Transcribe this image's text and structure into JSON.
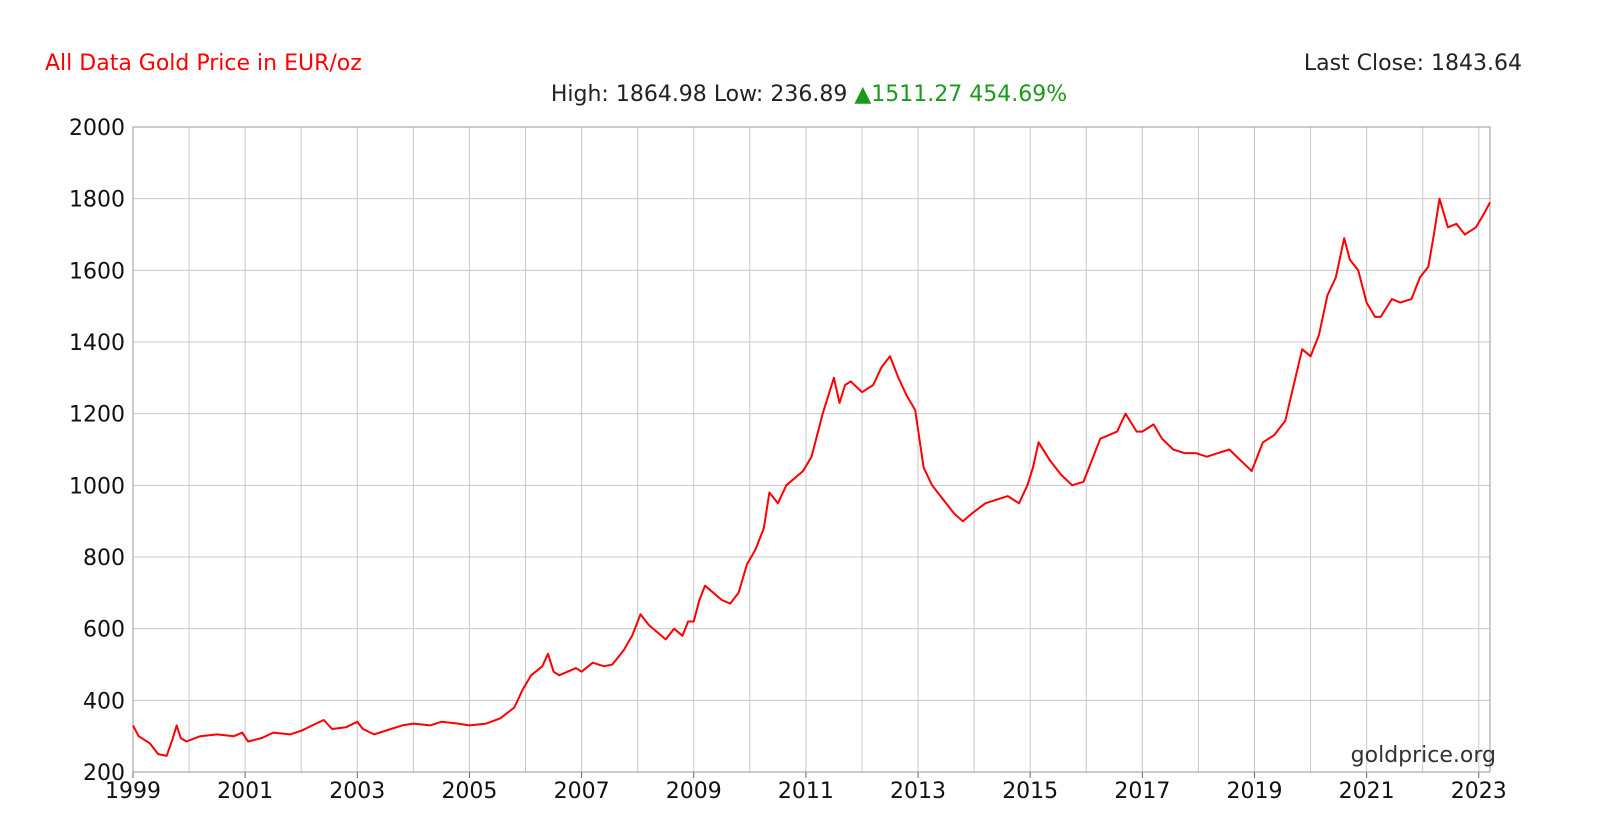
{
  "header": {
    "title": "All Data Gold Price in EUR/oz",
    "last_close_label": "Last Close:",
    "last_close_value": "1843.64",
    "high_label": "High:",
    "high_value": "1864.98",
    "low_label": "Low:",
    "low_value": "236.89",
    "change_value": "1511.27",
    "change_pct": "454.69%",
    "change_icon": "triangle-up-icon"
  },
  "watermark": "goldprice.org",
  "colors": {
    "line": "#ff0000",
    "title": "#ff0000",
    "up": "#1a9a1a",
    "grid": "#c8c8c8"
  },
  "chart_data": {
    "type": "line",
    "title": "All Data Gold Price in EUR/oz",
    "xlabel": "",
    "ylabel": "",
    "xlim": [
      1999.0,
      2023.2
    ],
    "ylim": [
      200,
      2000
    ],
    "grid": true,
    "x_ticks": [
      "1999",
      "2001",
      "2003",
      "2005",
      "2007",
      "2009",
      "2011",
      "2013",
      "2015",
      "2017",
      "2019",
      "2021",
      "2023"
    ],
    "x_tick_values": [
      1999,
      2001,
      2003,
      2005,
      2007,
      2009,
      2011,
      2013,
      2015,
      2017,
      2019,
      2021,
      2023
    ],
    "y_ticks": [
      200,
      400,
      600,
      800,
      1000,
      1200,
      1400,
      1600,
      1800,
      2000
    ],
    "series": [
      {
        "color": "#ff0000",
        "x": [
          1999.0,
          1999.1,
          1999.3,
          1999.45,
          1999.6,
          1999.7,
          1999.78,
          1999.85,
          1999.95,
          2000.2,
          2000.5,
          2000.8,
          2000.95,
          2001.05,
          2001.3,
          2001.5,
          2001.8,
          2002.0,
          2002.2,
          2002.4,
          2002.55,
          2002.8,
          2003.0,
          2003.1,
          2003.3,
          2003.6,
          2003.8,
          2004.0,
          2004.3,
          2004.5,
          2004.8,
          2005.0,
          2005.3,
          2005.55,
          2005.8,
          2005.95,
          2006.1,
          2006.3,
          2006.4,
          2006.5,
          2006.6,
          2006.75,
          2006.9,
          2007.0,
          2007.2,
          2007.4,
          2007.55,
          2007.75,
          2007.9,
          2008.05,
          2008.2,
          2008.35,
          2008.5,
          2008.65,
          2008.8,
          2008.9,
          2009.0,
          2009.1,
          2009.2,
          2009.35,
          2009.5,
          2009.65,
          2009.8,
          2009.95,
          2010.1,
          2010.25,
          2010.35,
          2010.5,
          2010.65,
          2010.8,
          2010.95,
          2011.1,
          2011.3,
          2011.5,
          2011.6,
          2011.7,
          2011.8,
          2012.0,
          2012.2,
          2012.35,
          2012.5,
          2012.65,
          2012.8,
          2012.95,
          2013.1,
          2013.25,
          2013.35,
          2013.5,
          2013.65,
          2013.8,
          2013.95,
          2014.2,
          2014.4,
          2014.6,
          2014.8,
          2014.95,
          2015.05,
          2015.15,
          2015.35,
          2015.55,
          2015.75,
          2015.95,
          2016.1,
          2016.25,
          2016.4,
          2016.55,
          2016.7,
          2016.9,
          2017.0,
          2017.2,
          2017.35,
          2017.55,
          2017.75,
          2017.95,
          2018.15,
          2018.35,
          2018.55,
          2018.75,
          2018.95,
          2019.15,
          2019.35,
          2019.55,
          2019.7,
          2019.85,
          2020.0,
          2020.15,
          2020.3,
          2020.45,
          2020.6,
          2020.7,
          2020.85,
          2021.0,
          2021.15,
          2021.25,
          2021.45,
          2021.6,
          2021.8,
          2021.95,
          2022.1,
          2022.2,
          2022.3,
          2022.45,
          2022.6,
          2022.75,
          2022.95,
          2023.1,
          2023.2
        ],
        "y": [
          330,
          300,
          280,
          250,
          245,
          290,
          330,
          295,
          285,
          300,
          305,
          300,
          310,
          285,
          295,
          310,
          305,
          315,
          330,
          345,
          320,
          325,
          340,
          320,
          305,
          320,
          330,
          335,
          330,
          340,
          335,
          330,
          335,
          350,
          380,
          430,
          470,
          495,
          530,
          480,
          470,
          480,
          490,
          480,
          505,
          495,
          500,
          540,
          580,
          640,
          610,
          590,
          570,
          600,
          580,
          620,
          620,
          680,
          720,
          700,
          680,
          670,
          700,
          780,
          820,
          880,
          980,
          950,
          1000,
          1020,
          1040,
          1080,
          1200,
          1300,
          1230,
          1280,
          1290,
          1260,
          1280,
          1330,
          1360,
          1300,
          1250,
          1210,
          1050,
          1000,
          980,
          950,
          920,
          900,
          920,
          950,
          960,
          970,
          950,
          1000,
          1050,
          1120,
          1070,
          1030,
          1000,
          1010,
          1070,
          1130,
          1140,
          1150,
          1200,
          1150,
          1150,
          1170,
          1130,
          1100,
          1090,
          1090,
          1080,
          1090,
          1100,
          1070,
          1040,
          1120,
          1140,
          1180,
          1280,
          1380,
          1360,
          1420,
          1530,
          1580,
          1690,
          1630,
          1600,
          1510,
          1470,
          1470,
          1520,
          1510,
          1520,
          1580,
          1610,
          1700,
          1800,
          1720,
          1730,
          1700,
          1720,
          1760,
          1790
        ]
      }
    ]
  }
}
